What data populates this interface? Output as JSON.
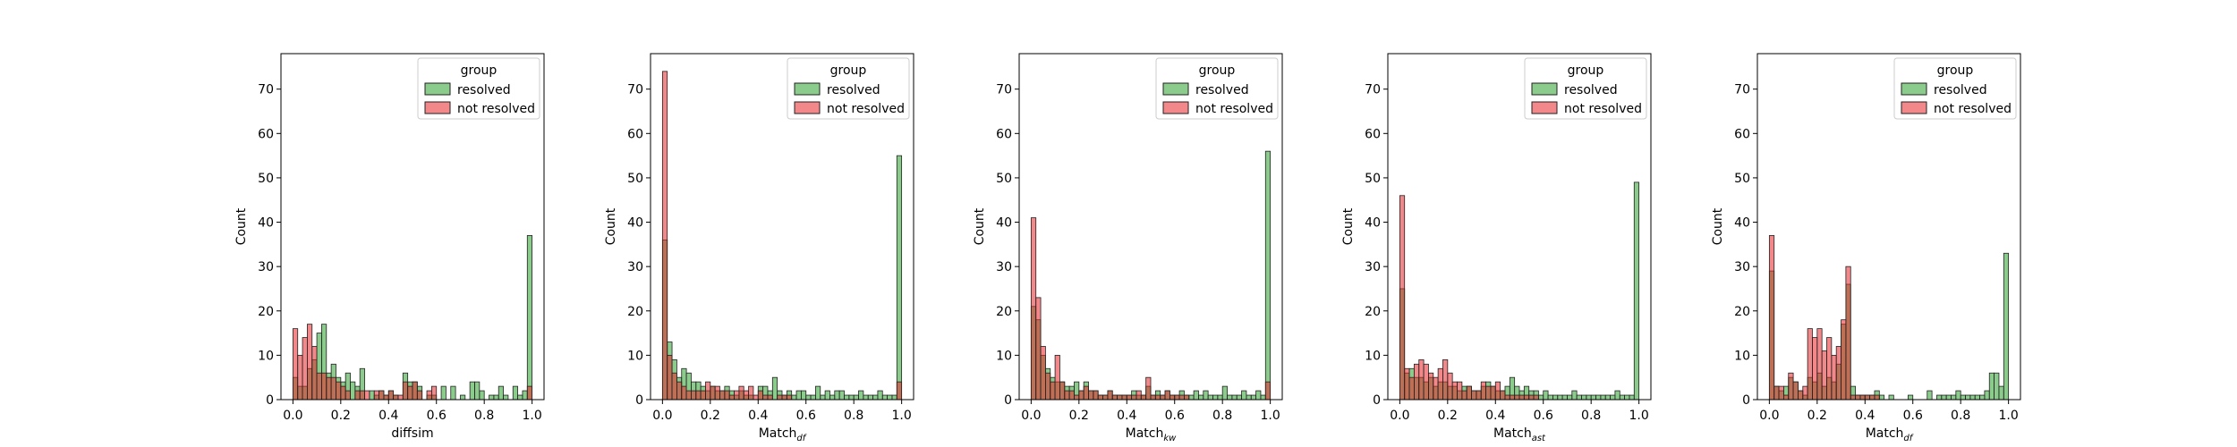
{
  "figure": {
    "panel_count": 5
  },
  "legend_common": {
    "title": "group",
    "entries": [
      {
        "label": "resolved",
        "color": "#2ca02c"
      },
      {
        "label": "not resolved",
        "color": "#e8262a"
      }
    ],
    "placement": "top-right"
  },
  "chart_data": [
    {
      "type": "bar",
      "title": "",
      "xlabel": "diffsim",
      "ylabel": "Count",
      "xlim": [
        -0.05,
        1.05
      ],
      "ylim": [
        0,
        78
      ],
      "xticks": [
        "0.0",
        "0.2",
        "0.4",
        "0.6",
        "0.8",
        "1.0"
      ],
      "yticks": [
        "0",
        "10",
        "20",
        "30",
        "40",
        "50",
        "60",
        "70"
      ],
      "grid": false,
      "bin_start": 0,
      "bin_width": 0.02,
      "series": [
        {
          "name": "resolved",
          "color": "#2ca02c",
          "values": [
            5,
            3,
            3,
            7,
            9,
            15,
            17,
            6,
            8,
            5,
            4,
            6,
            4,
            3,
            7,
            0,
            2,
            1,
            2,
            1,
            2,
            1,
            0,
            6,
            4,
            4,
            3,
            0,
            1,
            1,
            0,
            3,
            0,
            3,
            0,
            1,
            0,
            4,
            4,
            2,
            0,
            1,
            1,
            3,
            1,
            0,
            3,
            1,
            2,
            37
          ]
        },
        {
          "name": "not resolved",
          "color": "#e8262a",
          "values": [
            16,
            10,
            14,
            17,
            12,
            6,
            6,
            5,
            5,
            4,
            3,
            2,
            0,
            2,
            2,
            2,
            0,
            2,
            2,
            1,
            2,
            1,
            1,
            4,
            3,
            4,
            2,
            0,
            2,
            3,
            0,
            0,
            0,
            0,
            0,
            0,
            0,
            0,
            0,
            0,
            0,
            0,
            0,
            0,
            0,
            0,
            0,
            0,
            0,
            3
          ]
        }
      ]
    },
    {
      "type": "bar",
      "title": "",
      "xlabel": "Match",
      "xlabel_sub": "df",
      "ylabel": "Count",
      "xlim": [
        -0.05,
        1.05
      ],
      "ylim": [
        0,
        78
      ],
      "xticks": [
        "0.0",
        "0.2",
        "0.4",
        "0.6",
        "0.8",
        "1.0"
      ],
      "yticks": [
        "0",
        "10",
        "20",
        "30",
        "40",
        "50",
        "60",
        "70"
      ],
      "grid": false,
      "bin_start": 0,
      "bin_width": 0.02,
      "series": [
        {
          "name": "resolved",
          "color": "#2ca02c",
          "values": [
            36,
            13,
            9,
            5,
            7,
            6,
            4,
            4,
            3,
            2,
            3,
            2,
            2,
            3,
            2,
            1,
            2,
            1,
            1,
            0,
            3,
            3,
            2,
            5,
            2,
            1,
            2,
            1,
            2,
            2,
            1,
            1,
            3,
            1,
            2,
            1,
            2,
            2,
            1,
            1,
            1,
            2,
            1,
            1,
            1,
            2,
            1,
            1,
            1,
            55
          ]
        },
        {
          "name": "not resolved",
          "color": "#e8262a",
          "values": [
            74,
            10,
            6,
            4,
            3,
            2,
            2,
            2,
            2,
            4,
            3,
            3,
            2,
            2,
            1,
            2,
            3,
            2,
            3,
            1,
            2,
            1,
            1,
            0,
            1,
            1,
            1,
            0,
            0,
            0,
            0,
            0,
            0,
            0,
            0,
            0,
            0,
            0,
            0,
            0,
            0,
            0,
            0,
            0,
            0,
            0,
            0,
            0,
            0,
            4
          ]
        }
      ]
    },
    {
      "type": "bar",
      "title": "",
      "xlabel": "Match",
      "xlabel_sub": "kw",
      "ylabel": "Count",
      "xlim": [
        -0.05,
        1.05
      ],
      "ylim": [
        0,
        78
      ],
      "xticks": [
        "0.0",
        "0.2",
        "0.4",
        "0.6",
        "0.8",
        "1.0"
      ],
      "yticks": [
        "0",
        "10",
        "20",
        "30",
        "40",
        "50",
        "60",
        "70"
      ],
      "grid": false,
      "bin_start": 0,
      "bin_width": 0.02,
      "series": [
        {
          "name": "resolved",
          "color": "#2ca02c",
          "values": [
            21,
            18,
            10,
            7,
            5,
            4,
            4,
            3,
            3,
            4,
            2,
            4,
            2,
            2,
            1,
            1,
            2,
            1,
            1,
            1,
            1,
            2,
            1,
            1,
            3,
            1,
            2,
            1,
            2,
            1,
            1,
            2,
            1,
            1,
            2,
            1,
            2,
            1,
            1,
            1,
            3,
            1,
            1,
            1,
            2,
            1,
            1,
            2,
            1,
            56
          ]
        },
        {
          "name": "not resolved",
          "color": "#e8262a",
          "values": [
            41,
            23,
            12,
            6,
            4,
            10,
            4,
            2,
            2,
            1,
            2,
            3,
            2,
            2,
            1,
            1,
            2,
            1,
            1,
            1,
            1,
            1,
            2,
            1,
            5,
            1,
            1,
            1,
            2,
            1,
            1,
            1,
            1,
            0,
            0,
            0,
            0,
            0,
            0,
            0,
            0,
            0,
            0,
            0,
            0,
            0,
            0,
            0,
            0,
            4
          ]
        }
      ]
    },
    {
      "type": "bar",
      "title": "",
      "xlabel": "Match",
      "xlabel_sub": "ast",
      "ylabel": "Count",
      "xlim": [
        -0.05,
        1.05
      ],
      "ylim": [
        0,
        78
      ],
      "xticks": [
        "0.0",
        "0.2",
        "0.4",
        "0.6",
        "0.8",
        "1.0"
      ],
      "yticks": [
        "0",
        "10",
        "20",
        "30",
        "40",
        "50",
        "60",
        "70"
      ],
      "grid": false,
      "bin_start": 0,
      "bin_width": 0.02,
      "series": [
        {
          "name": "resolved",
          "color": "#2ca02c",
          "values": [
            25,
            6,
            7,
            5,
            5,
            4,
            5,
            3,
            4,
            4,
            3,
            3,
            2,
            3,
            3,
            2,
            2,
            3,
            4,
            3,
            2,
            2,
            3,
            5,
            3,
            2,
            3,
            2,
            2,
            1,
            2,
            1,
            1,
            1,
            1,
            1,
            2,
            1,
            1,
            1,
            1,
            1,
            1,
            1,
            1,
            2,
            1,
            1,
            1,
            49
          ]
        },
        {
          "name": "not resolved",
          "color": "#e8262a",
          "values": [
            46,
            7,
            5,
            8,
            9,
            8,
            6,
            5,
            7,
            9,
            6,
            4,
            4,
            2,
            3,
            2,
            2,
            4,
            3,
            3,
            4,
            2,
            1,
            1,
            1,
            1,
            1,
            1,
            1,
            0,
            0,
            0,
            0,
            0,
            0,
            0,
            0,
            0,
            0,
            0,
            0,
            0,
            0,
            0,
            0,
            0,
            0,
            0,
            0,
            0
          ]
        }
      ]
    },
    {
      "type": "bar",
      "title": "",
      "xlabel": "Match",
      "xlabel_sub": "df",
      "ylabel": "Count",
      "xlim": [
        -0.05,
        1.05
      ],
      "ylim": [
        0,
        78
      ],
      "xticks": [
        "0.0",
        "0.2",
        "0.4",
        "0.6",
        "0.8",
        "1.0"
      ],
      "yticks": [
        "0",
        "10",
        "20",
        "30",
        "40",
        "50",
        "60",
        "70"
      ],
      "grid": false,
      "bin_start": 0,
      "bin_width": 0.02,
      "series": [
        {
          "name": "resolved",
          "color": "#2ca02c",
          "values": [
            29,
            3,
            2,
            3,
            5,
            4,
            2,
            1,
            5,
            4,
            6,
            3,
            5,
            4,
            8,
            17,
            26,
            3,
            1,
            1,
            1,
            1,
            2,
            1,
            0,
            1,
            0,
            0,
            0,
            1,
            0,
            0,
            0,
            2,
            0,
            1,
            1,
            1,
            1,
            2,
            1,
            1,
            1,
            1,
            1,
            2,
            6,
            6,
            3,
            33
          ]
        },
        {
          "name": "not resolved",
          "color": "#e8262a",
          "values": [
            37,
            3,
            3,
            1,
            6,
            4,
            2,
            3,
            16,
            14,
            16,
            11,
            14,
            10,
            12,
            18,
            30,
            1,
            1,
            1,
            1,
            1,
            1,
            0,
            0,
            0,
            0,
            0,
            0,
            0,
            0,
            0,
            0,
            0,
            0,
            0,
            0,
            0,
            0,
            0,
            0,
            0,
            0,
            0,
            0,
            0,
            0,
            0,
            0,
            0
          ]
        }
      ]
    }
  ]
}
